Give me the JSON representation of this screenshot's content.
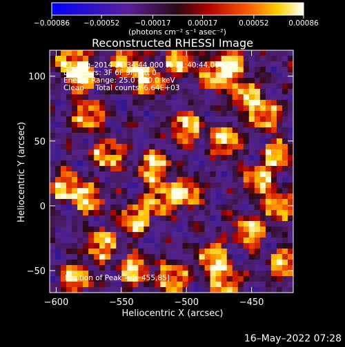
{
  "chart_data": {
    "type": "heatmap",
    "title": "Reconstructed RHESSI Image",
    "xlabel": "Heliocentric X (arcsec)",
    "ylabel": "Heliocentric Y (arcsec)",
    "xlim": [
      -605,
      -418
    ],
    "ylim": [
      -67,
      120
    ],
    "x_ticks": [
      -600,
      -550,
      -500,
      -450
    ],
    "x_tick_labels": [
      "−600",
      "−550",
      "−500",
      "−450"
    ],
    "y_ticks": [
      -50,
      0,
      50,
      100
    ],
    "y_tick_labels": [
      "−50",
      "0",
      "50",
      "100"
    ],
    "colorbar": {
      "range": [
        -0.00086,
        0.00086
      ],
      "ticks": [
        -0.00086,
        -0.00052,
        -0.00017,
        0.00017,
        0.00052,
        0.00086
      ],
      "tick_labels": [
        "−0.00086",
        "−0.00052",
        "−0.00017",
        "0.00017",
        "0.00052",
        "0.00086"
      ],
      "unit_label": "(photons cm⁻² s⁻¹ asec⁻²)"
    },
    "annotations": [
      "21–Aug–2014 21:34:44.000 to 21:40:44.000",
      "Detectors: 3F 6F 9F, Att 0",
      "Energy Range: 25.0 – 50.0 keV",
      "Clean     Total counts: 6.64E+03"
    ],
    "peak_label": "Position of Peak = [−455,85]",
    "hotspots": [
      {
        "x": -588,
        "y": 112
      },
      {
        "x": -580,
        "y": 98
      },
      {
        "x": -575,
        "y": 70
      },
      {
        "x": -545,
        "y": 110
      },
      {
        "x": -528,
        "y": 96
      },
      {
        "x": -505,
        "y": 112
      },
      {
        "x": -478,
        "y": 100
      },
      {
        "x": -465,
        "y": 110
      },
      {
        "x": -455,
        "y": 85
      },
      {
        "x": -440,
        "y": 70
      },
      {
        "x": -430,
        "y": 40
      },
      {
        "x": -445,
        "y": 20
      },
      {
        "x": -430,
        "y": 0
      },
      {
        "x": -452,
        "y": -20
      },
      {
        "x": -480,
        "y": -40
      },
      {
        "x": -500,
        "y": 10
      },
      {
        "x": -525,
        "y": 30
      },
      {
        "x": -520,
        "y": 5
      },
      {
        "x": -540,
        "y": -10
      },
      {
        "x": -575,
        "y": 5
      },
      {
        "x": -592,
        "y": 15
      },
      {
        "x": -565,
        "y": -30
      },
      {
        "x": -585,
        "y": -55
      },
      {
        "x": -540,
        "y": -50
      },
      {
        "x": -510,
        "y": -55
      },
      {
        "x": -470,
        "y": -58
      },
      {
        "x": -425,
        "y": -45
      },
      {
        "x": -560,
        "y": 40
      },
      {
        "x": -500,
        "y": 60
      },
      {
        "x": -470,
        "y": 50
      }
    ]
  },
  "footer": {
    "timestamp": "16–May–2022 07:28"
  }
}
